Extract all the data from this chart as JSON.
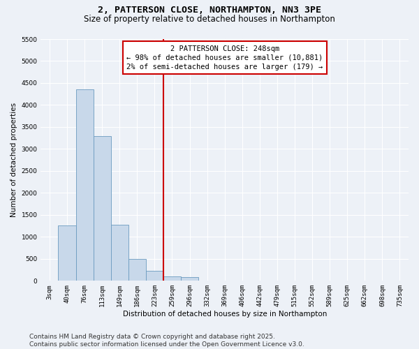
{
  "title": "2, PATTERSON CLOSE, NORTHAMPTON, NN3 3PE",
  "subtitle": "Size of property relative to detached houses in Northampton",
  "xlabel": "Distribution of detached houses by size in Northampton",
  "ylabel": "Number of detached properties",
  "bar_color": "#c8d8ea",
  "bar_edge_color": "#6a9abf",
  "categories": [
    "3sqm",
    "40sqm",
    "76sqm",
    "113sqm",
    "149sqm",
    "186sqm",
    "223sqm",
    "259sqm",
    "296sqm",
    "332sqm",
    "369sqm",
    "406sqm",
    "442sqm",
    "479sqm",
    "515sqm",
    "552sqm",
    "589sqm",
    "625sqm",
    "662sqm",
    "698sqm",
    "735sqm"
  ],
  "bar_values": [
    0,
    1255,
    4350,
    3300,
    1280,
    500,
    220,
    100,
    80,
    0,
    0,
    0,
    0,
    0,
    0,
    0,
    0,
    0,
    0,
    0,
    0
  ],
  "vline_index": 7,
  "vline_color": "#cc0000",
  "annotation_line1": "2 PATTERSON CLOSE: 248sqm",
  "annotation_line2": "← 98% of detached houses are smaller (10,881)",
  "annotation_line3": "2% of semi-detached houses are larger (179) →",
  "annotation_box_color": "#ffffff",
  "annotation_box_edge": "#cc0000",
  "ylim": [
    0,
    5500
  ],
  "yticks": [
    0,
    500,
    1000,
    1500,
    2000,
    2500,
    3000,
    3500,
    4000,
    4500,
    5000,
    5500
  ],
  "footer_line1": "Contains HM Land Registry data © Crown copyright and database right 2025.",
  "footer_line2": "Contains public sector information licensed under the Open Government Licence v3.0.",
  "bg_color": "#edf1f7",
  "plot_bg_color": "#edf1f7",
  "grid_color": "#ffffff",
  "title_fontsize": 9.5,
  "subtitle_fontsize": 8.5,
  "axis_label_fontsize": 7.5,
  "tick_fontsize": 6.5,
  "annotation_fontsize": 7.5,
  "footer_fontsize": 6.5
}
